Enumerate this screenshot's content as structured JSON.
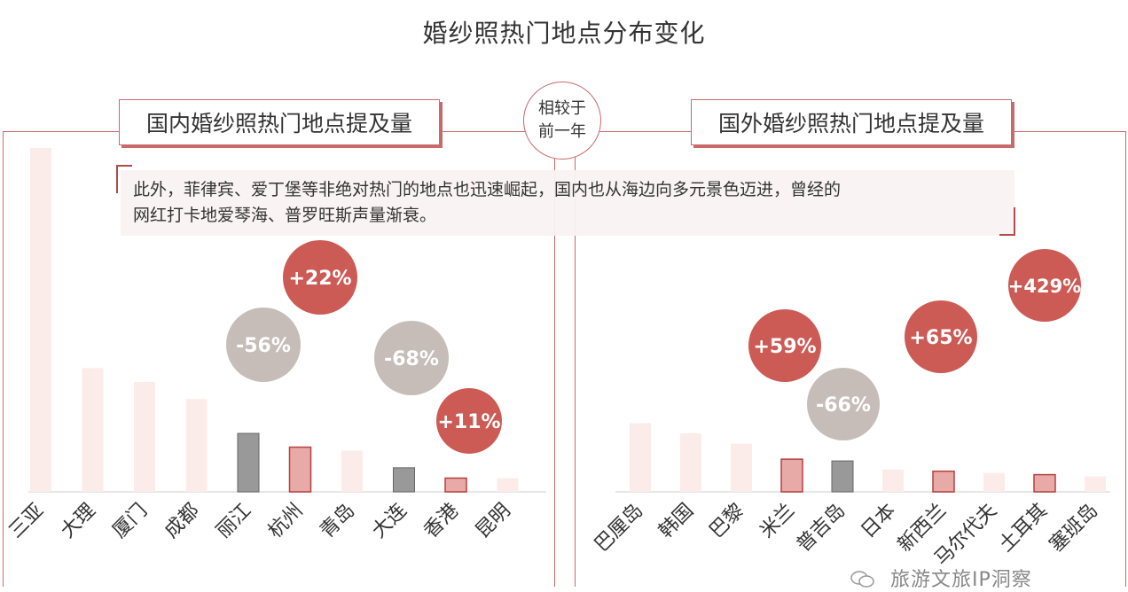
{
  "title": "婚纱照热门地点分布变化",
  "compare_label_line1": "相较于",
  "compare_label_line2": "前一年",
  "note": {
    "line1": "此外，菲律宾、爱丁堡等非绝对热门的地点也迅速崛起，国内也从海边向多元景色迈进，曾经的",
    "line2": "网红打卡地爱琴海、普罗旺斯声量渐衰。"
  },
  "watermark": "旅游文旅IP洞察",
  "colors": {
    "light_bar": "#fbecea",
    "highlight_up_bar": "#e8aaa6",
    "highlight_up_border": "#b5403f",
    "highlight_down_bar": "#999999",
    "up_bubble": "#cc5b55",
    "down_bubble": "#c6bdb9",
    "frame": "#c9696a"
  },
  "chart_data": [
    {
      "type": "bar",
      "title": "国内婚纱照热门地点提及量",
      "categories": [
        "三亚",
        "大理",
        "厦门",
        "成都",
        "丽江",
        "杭州",
        "青岛",
        "大连",
        "香港",
        "昆明"
      ],
      "values": [
        100,
        36,
        32,
        27,
        17,
        13,
        12,
        7,
        4,
        4
      ],
      "changes": [
        null,
        null,
        null,
        null,
        "-56%",
        "+22%",
        null,
        "-68%",
        "+11%",
        null
      ],
      "ylim": [
        0,
        100
      ]
    },
    {
      "type": "bar",
      "title": "国外婚纱照热门地点提及量",
      "categories": [
        "巴厘岛",
        "韩国",
        "巴黎",
        "米兰",
        "普吉岛",
        "日本",
        "新西兰",
        "马尔代夫",
        "土耳其",
        "塞班岛"
      ],
      "values": [
        20,
        17,
        14,
        9.5,
        9,
        6.5,
        6,
        5.5,
        5,
        4.5
      ],
      "changes": [
        null,
        null,
        null,
        "+59%",
        "-66%",
        null,
        "+65%",
        null,
        "+429%",
        null
      ],
      "ylim": [
        0,
        100
      ]
    }
  ]
}
